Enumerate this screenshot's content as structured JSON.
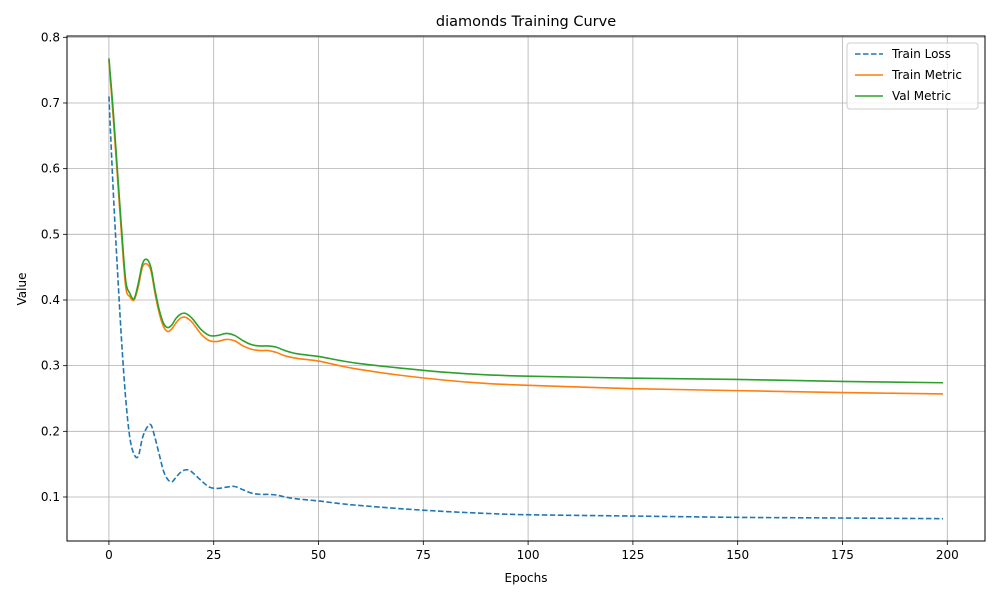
{
  "chart_data": {
    "type": "line",
    "title": "diamonds Training Curve",
    "xlabel": "Epochs",
    "ylabel": "Value",
    "xlim": [
      -10,
      209
    ],
    "ylim": [
      0.033,
      0.802
    ],
    "xticks": [
      0,
      25,
      50,
      75,
      100,
      125,
      150,
      175,
      200
    ],
    "yticks": [
      0.1,
      0.2,
      0.3,
      0.4,
      0.5,
      0.6,
      0.7,
      0.8
    ],
    "grid": true,
    "legend_position": "top-right",
    "series": [
      {
        "name": "Train Loss",
        "color": "#1f77b4",
        "style": "dashed",
        "x": [
          0,
          1,
          2,
          3,
          4,
          5,
          6,
          7,
          8,
          9,
          10,
          11,
          12,
          13,
          14,
          15,
          16,
          17,
          18,
          19,
          20,
          22,
          24,
          26,
          28,
          30,
          32,
          34,
          36,
          38,
          40,
          42,
          45,
          50,
          55,
          60,
          70,
          80,
          90,
          100,
          125,
          150,
          175,
          199
        ],
        "y": [
          0.71,
          0.57,
          0.45,
          0.34,
          0.25,
          0.19,
          0.165,
          0.162,
          0.19,
          0.205,
          0.21,
          0.19,
          0.165,
          0.14,
          0.127,
          0.123,
          0.13,
          0.137,
          0.141,
          0.141,
          0.137,
          0.125,
          0.115,
          0.113,
          0.115,
          0.116,
          0.111,
          0.106,
          0.104,
          0.104,
          0.103,
          0.1,
          0.097,
          0.094,
          0.09,
          0.087,
          0.082,
          0.078,
          0.075,
          0.073,
          0.071,
          0.069,
          0.068,
          0.067
        ]
      },
      {
        "name": "Train Metric",
        "color": "#ff7f0e",
        "style": "solid",
        "x": [
          0,
          1,
          2,
          3,
          4,
          5,
          6,
          7,
          8,
          9,
          10,
          11,
          12,
          13,
          14,
          15,
          16,
          17,
          18,
          19,
          20,
          22,
          24,
          26,
          28,
          30,
          32,
          34,
          36,
          38,
          40,
          42,
          45,
          50,
          55,
          60,
          70,
          80,
          90,
          100,
          125,
          150,
          175,
          199
        ],
        "y": [
          0.765,
          0.68,
          0.59,
          0.5,
          0.42,
          0.405,
          0.4,
          0.42,
          0.45,
          0.455,
          0.445,
          0.41,
          0.38,
          0.36,
          0.352,
          0.356,
          0.365,
          0.372,
          0.374,
          0.371,
          0.365,
          0.348,
          0.338,
          0.337,
          0.34,
          0.338,
          0.33,
          0.325,
          0.323,
          0.323,
          0.32,
          0.315,
          0.311,
          0.307,
          0.3,
          0.294,
          0.285,
          0.278,
          0.273,
          0.27,
          0.265,
          0.262,
          0.259,
          0.257
        ]
      },
      {
        "name": "Val Metric",
        "color": "#2ca02c",
        "style": "solid",
        "x": [
          0,
          1,
          2,
          3,
          4,
          5,
          6,
          7,
          8,
          9,
          10,
          11,
          12,
          13,
          14,
          15,
          16,
          17,
          18,
          19,
          20,
          22,
          24,
          26,
          28,
          30,
          32,
          34,
          36,
          38,
          40,
          42,
          45,
          50,
          55,
          60,
          70,
          80,
          90,
          100,
          125,
          150,
          175,
          199
        ],
        "y": [
          0.768,
          0.69,
          0.6,
          0.51,
          0.43,
          0.41,
          0.402,
          0.425,
          0.455,
          0.462,
          0.45,
          0.415,
          0.385,
          0.365,
          0.358,
          0.362,
          0.372,
          0.378,
          0.38,
          0.377,
          0.371,
          0.355,
          0.346,
          0.346,
          0.349,
          0.346,
          0.338,
          0.332,
          0.33,
          0.33,
          0.328,
          0.323,
          0.318,
          0.314,
          0.308,
          0.303,
          0.296,
          0.29,
          0.286,
          0.284,
          0.281,
          0.279,
          0.276,
          0.274
        ]
      }
    ]
  }
}
